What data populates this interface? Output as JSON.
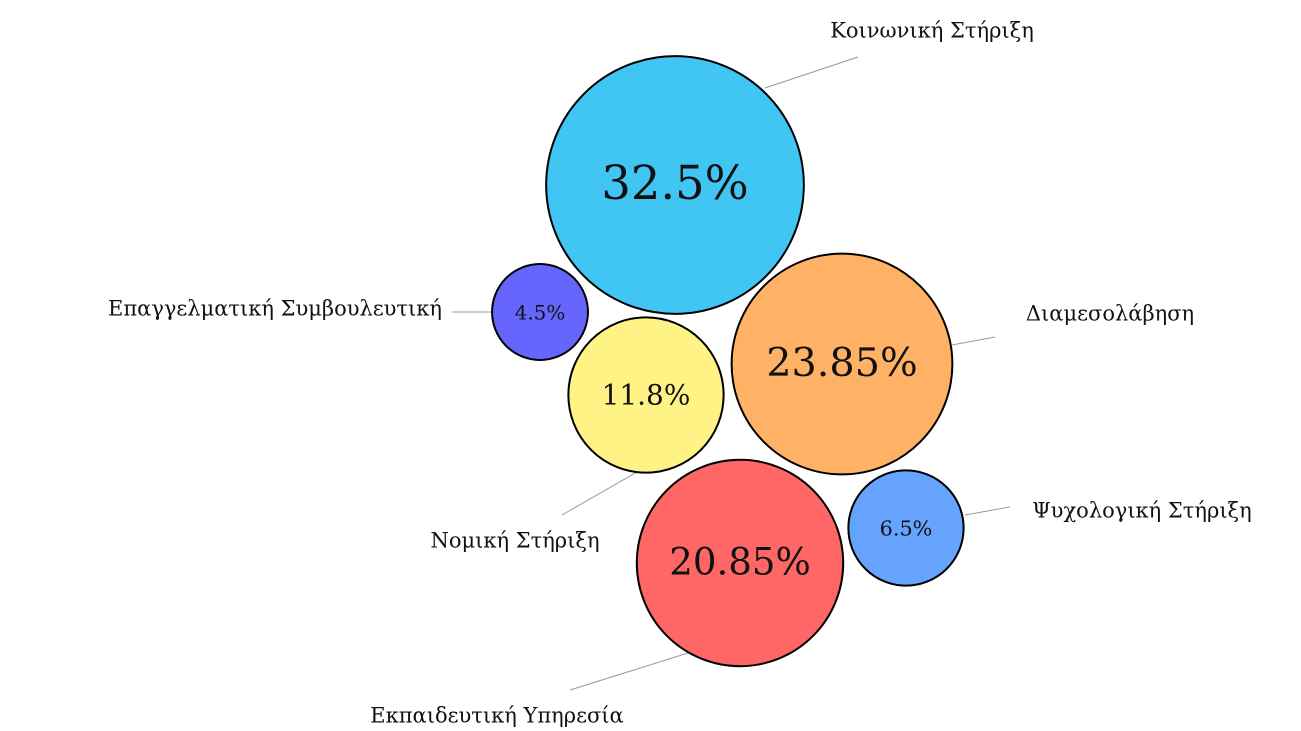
{
  "chart_data": {
    "type": "packed-bubble",
    "categories": [
      "Κοινωνική Στήριξη",
      "Διαμεσολάβηση",
      "Επαγγελματική Συμβουλευτική",
      "Νομική Στήριξη",
      "Εκπαιδευτική Υπηρεσία",
      "Ψυχολογική Στήριξη"
    ],
    "values": [
      32.5,
      23.85,
      4.5,
      11.8,
      20.85,
      6.5
    ],
    "value_labels": [
      "32.5%",
      "23.85%",
      "4.5%",
      "11.8%",
      "20.85%",
      "6.5%"
    ],
    "colors": [
      "#41c6f3",
      "#ffb266",
      "#6666ff",
      "#fff386",
      "#ff6666",
      "#66a3ff"
    ]
  }
}
